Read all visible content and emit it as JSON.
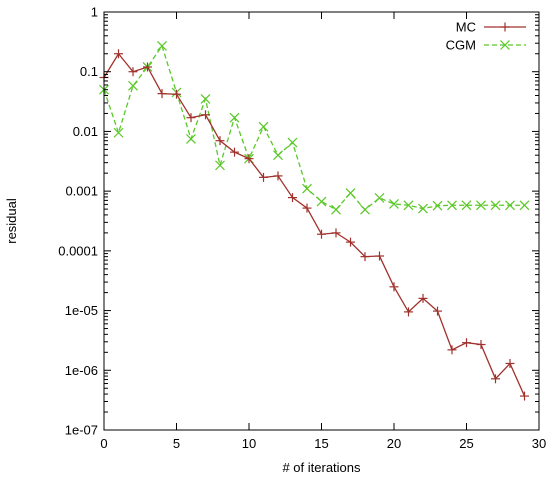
{
  "chart_data": {
    "type": "line",
    "title": "",
    "xlabel": "# of iterations",
    "ylabel": "residual",
    "xlim": [
      0,
      30
    ],
    "ylim": [
      1e-07,
      1
    ],
    "yscale": "log",
    "grid": false,
    "legend_position": "top-right",
    "x_ticks": [
      0,
      5,
      10,
      15,
      20,
      25,
      30
    ],
    "x_tick_labels": [
      "0",
      "5",
      "10",
      "15",
      "20",
      "25",
      "30"
    ],
    "y_ticks": [
      1e-07,
      1e-06,
      1e-05,
      0.0001,
      0.001,
      0.01,
      0.1,
      1
    ],
    "y_tick_labels": [
      "1e-07",
      "1e-06",
      "1e-05",
      "0.0001",
      "0.001",
      "0.01",
      "0.1",
      "1"
    ],
    "series": [
      {
        "name": "MC",
        "color": "#a0322d",
        "marker": "plus",
        "line": "solid",
        "x": [
          0,
          1,
          2,
          3,
          4,
          5,
          6,
          7,
          8,
          9,
          10,
          11,
          12,
          13,
          14,
          15,
          16,
          17,
          18,
          19,
          20,
          21,
          22,
          23,
          24,
          25,
          26,
          27,
          28,
          29
        ],
        "y": [
          0.08,
          0.2,
          0.1,
          0.12,
          0.043,
          0.042,
          0.017,
          0.019,
          0.007,
          0.0045,
          0.0035,
          0.0017,
          0.0018,
          0.00078,
          0.00052,
          0.00019,
          0.0002,
          0.00014,
          8e-05,
          8.2e-05,
          2.5e-05,
          9.5e-06,
          1.6e-05,
          9.8e-06,
          2.2e-06,
          2.9e-06,
          2.7e-06,
          7.2e-07,
          1.3e-06,
          3.7e-07
        ]
      },
      {
        "name": "CGM",
        "color": "#5ac828",
        "marker": "x",
        "line": "dashed",
        "x": [
          0,
          1,
          2,
          3,
          4,
          5,
          6,
          7,
          8,
          9,
          10,
          11,
          12,
          13,
          14,
          15,
          16,
          17,
          18,
          19,
          20,
          21,
          22,
          23,
          24,
          25,
          26,
          27,
          28,
          29
        ],
        "y": [
          0.05,
          0.0095,
          0.058,
          0.12,
          0.27,
          0.045,
          0.0075,
          0.035,
          0.0027,
          0.017,
          0.0035,
          0.012,
          0.004,
          0.0065,
          0.0011,
          0.00067,
          0.00049,
          0.00093,
          0.00049,
          0.00077,
          0.00061,
          0.00058,
          0.00051,
          0.00057,
          0.00058,
          0.00058,
          0.00058,
          0.00058,
          0.00058,
          0.00058
        ]
      }
    ]
  }
}
